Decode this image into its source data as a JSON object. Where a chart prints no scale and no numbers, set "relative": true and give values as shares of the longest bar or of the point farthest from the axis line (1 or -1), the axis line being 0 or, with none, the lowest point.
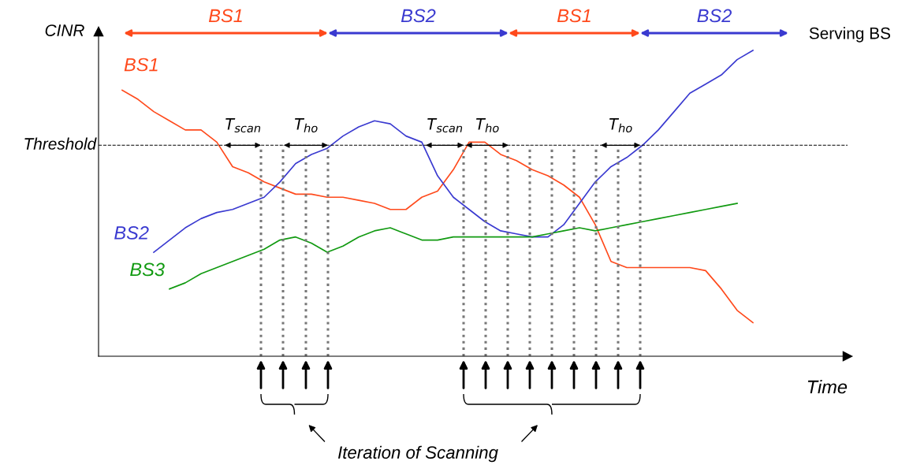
{
  "chart_data": {
    "type": "line",
    "relative": true,
    "tick_labels": false,
    "xlabel": "Time",
    "ylabel": "CINR",
    "marker": "none",
    "line_style": "solid",
    "categories": [
      null,
      null,
      null,
      null,
      null,
      null,
      null,
      null,
      null,
      null,
      null,
      null,
      null,
      null,
      null,
      null,
      null,
      null,
      null,
      null,
      null,
      null,
      null,
      null,
      null,
      null,
      null,
      null,
      null,
      null,
      null,
      null,
      null,
      null,
      null,
      null,
      null,
      null,
      null,
      null,
      null,
      null
    ],
    "series": [
      {
        "name": "BS1",
        "color": "#ff4a1c",
        "values": [
          0.87,
          0.84,
          0.8,
          0.77,
          0.74,
          0.74,
          0.7,
          0.62,
          0.6,
          0.57,
          0.55,
          0.53,
          0.53,
          0.52,
          0.52,
          0.51,
          0.5,
          0.48,
          0.48,
          0.52,
          0.54,
          0.61,
          0.7,
          0.7,
          0.66,
          0.64,
          0.61,
          0.59,
          0.56,
          0.52,
          0.43,
          0.31,
          0.29,
          0.29,
          0.29,
          0.29,
          0.29,
          0.28,
          0.22,
          0.15,
          0.11,
          null
        ]
      },
      {
        "name": "BS2",
        "color": "#3a3ad0",
        "values": [
          null,
          null,
          0.34,
          0.38,
          0.42,
          0.45,
          0.47,
          0.48,
          0.5,
          0.52,
          0.57,
          0.63,
          0.66,
          0.68,
          0.72,
          0.75,
          0.77,
          0.76,
          0.72,
          0.7,
          0.59,
          0.52,
          0.48,
          0.44,
          0.41,
          0.4,
          0.39,
          0.39,
          0.43,
          0.5,
          0.57,
          0.62,
          0.65,
          0.69,
          0.74,
          0.8,
          0.86,
          0.89,
          0.92,
          0.97,
          1.0,
          null
        ]
      },
      {
        "name": "BS3",
        "color": "#119a11",
        "values": [
          null,
          null,
          null,
          0.22,
          0.24,
          0.27,
          0.29,
          0.31,
          0.33,
          0.35,
          0.38,
          0.39,
          0.37,
          0.34,
          0.36,
          0.39,
          0.41,
          0.42,
          0.4,
          0.38,
          0.38,
          0.39,
          0.39,
          0.39,
          0.39,
          0.39,
          0.39,
          0.4,
          0.41,
          0.42,
          0.41,
          0.42,
          0.43,
          0.44,
          0.45,
          0.46,
          0.47,
          0.48,
          0.49,
          0.5,
          null,
          null
        ]
      }
    ],
    "ref_lines": [
      {
        "axis": "y",
        "value": 0.69,
        "label": "Threshold",
        "line_style": "dashed"
      }
    ],
    "annotations": [
      "BS1",
      "BS2",
      "BS1",
      "BS2",
      "Serving BS",
      "T$_{scan}$",
      "T$_{ho}$",
      "T$_{scan}$",
      "T$_{ho}$",
      "T$_{ho}$",
      "Iteration of Scanning"
    ]
  }
}
